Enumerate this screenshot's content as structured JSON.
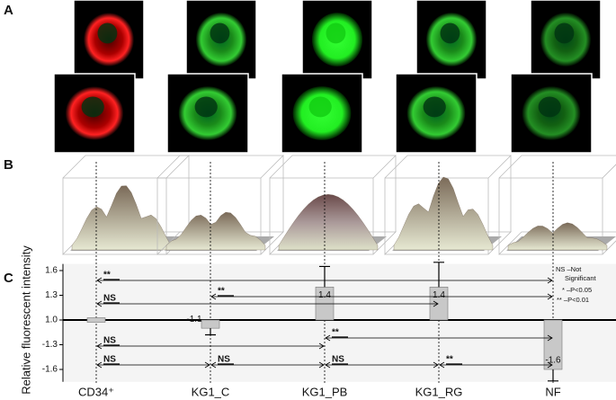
{
  "panel_labels": [
    "A",
    "B",
    "C"
  ],
  "chart_data": {
    "type": "bar",
    "ylabel": "Relative fluorescent intensity",
    "categories": [
      "CD34⁺",
      "KG1_C",
      "KG1_PB",
      "KG1_RG",
      "NF"
    ],
    "values": [
      1.0,
      -1.1,
      1.4,
      1.4,
      -1.6
    ],
    "value_labels": [
      null,
      "-1.1",
      "1.4",
      "1.4",
      "-1.6"
    ],
    "errors": [
      null,
      0.08,
      0.25,
      0.3,
      0.14
    ],
    "color": "#c8c8c8",
    "ylim": [
      -1.75,
      1.68
    ],
    "yticks": [
      1.6,
      1.3,
      {
        "value": 1.0,
        "label": "1.0"
      },
      -1.3,
      -1.6
    ],
    "comparisons": [
      {
        "between": [
          "CD34⁺",
          "NF"
        ],
        "label": "**"
      },
      {
        "between": [
          "CD34⁺",
          "KG1_RG"
        ],
        "label": "NS"
      },
      {
        "between": [
          "KG1_C",
          "NF"
        ],
        "label": "**"
      },
      {
        "between": [
          "CD34⁺",
          "KG1_PB"
        ],
        "label": "NS"
      },
      {
        "between": [
          "KG1_PB",
          "NF"
        ],
        "label": "**"
      },
      {
        "between": [
          "CD34⁺",
          "KG1_C"
        ],
        "label": "NS"
      },
      {
        "between": [
          "KG1_C",
          "KG1_PB"
        ],
        "label": "NS"
      },
      {
        "between": [
          "KG1_PB",
          "KG1_RG"
        ],
        "label": "NS"
      },
      {
        "between": [
          "KG1_RG",
          "NF"
        ],
        "label": "**"
      }
    ],
    "legend": [
      "NS –Not",
      "Significant",
      "* –P<0.05",
      "** –P<0.01"
    ]
  }
}
